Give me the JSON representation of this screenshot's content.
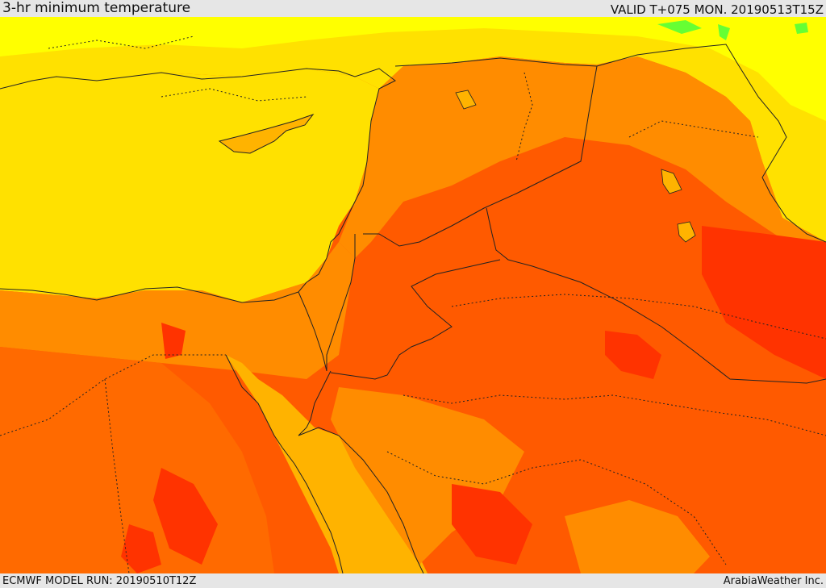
{
  "header": {
    "title": "3-hr minimum temperature",
    "valid": "VALID T+075 MON. 20190513T15Z"
  },
  "footer": {
    "model_run": "ECMWF MODEL RUN: 20190510T12Z",
    "credit": "ArabiaWeather Inc."
  },
  "colors": {
    "sea_yellow": "#ffe100",
    "yellow": "#ffff00",
    "light_orange": "#ffb300",
    "orange": "#ff8c00",
    "dark_orange": "#ff5a00",
    "red": "#ff2a00",
    "green": "#66ff33",
    "border_line": "#222222"
  }
}
